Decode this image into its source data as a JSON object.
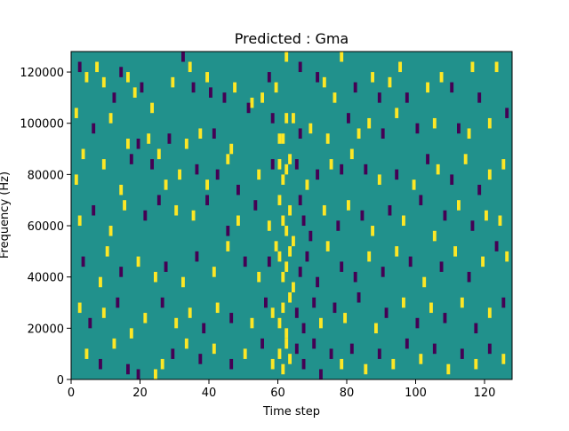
{
  "chart_data": {
    "type": "heatmap",
    "title": "Predicted : Gma",
    "xlabel": "Time step",
    "ylabel": "Frequency (Hz)",
    "xlim": [
      0,
      128
    ],
    "ylim": [
      0,
      128000
    ],
    "x_ticks": [
      0,
      20,
      40,
      60,
      80,
      100,
      120
    ],
    "x_tick_labels": [
      "0",
      "20",
      "40",
      "60",
      "80",
      "100",
      "120"
    ],
    "y_ticks": [
      0,
      20000,
      40000,
      60000,
      80000,
      100000,
      120000
    ],
    "y_tick_labels": [
      "0",
      "20000",
      "40000",
      "60000",
      "80000",
      "100000",
      "120000"
    ],
    "colormap": "viridis",
    "background_value": 0,
    "colors": {
      "background": "#21918c",
      "high": "#fde725",
      "low": "#440154"
    },
    "grid": false,
    "legend": "none",
    "cells_note": "time step, frequency band center (Hz), value (+1 high / -1 low); bands are 4000 Hz wide",
    "cells": [
      [
        2,
        122000,
        -1
      ],
      [
        4,
        118000,
        1
      ],
      [
        7,
        122000,
        1
      ],
      [
        9,
        116000,
        1
      ],
      [
        12,
        110000,
        -1
      ],
      [
        14,
        120000,
        -1
      ],
      [
        16,
        118000,
        1
      ],
      [
        18,
        112000,
        1
      ],
      [
        20,
        114000,
        -1
      ],
      [
        23,
        106000,
        1
      ],
      [
        29,
        116000,
        1
      ],
      [
        32,
        126000,
        -1
      ],
      [
        34,
        122000,
        1
      ],
      [
        35,
        114000,
        -1
      ],
      [
        39,
        118000,
        1
      ],
      [
        40,
        112000,
        -1
      ],
      [
        44,
        110000,
        -1
      ],
      [
        47,
        114000,
        1
      ],
      [
        51,
        106000,
        -1
      ],
      [
        55,
        110000,
        1
      ],
      [
        57,
        118000,
        -1
      ],
      [
        59,
        114000,
        1
      ],
      [
        62,
        126000,
        1
      ],
      [
        66,
        122000,
        -1
      ],
      [
        71,
        118000,
        -1
      ],
      [
        73,
        116000,
        1
      ],
      [
        76,
        110000,
        1
      ],
      [
        78,
        126000,
        1
      ],
      [
        82,
        114000,
        -1
      ],
      [
        87,
        118000,
        1
      ],
      [
        89,
        110000,
        -1
      ],
      [
        92,
        116000,
        1
      ],
      [
        95,
        122000,
        1
      ],
      [
        97,
        110000,
        -1
      ],
      [
        103,
        114000,
        1
      ],
      [
        107,
        118000,
        1
      ],
      [
        110,
        114000,
        -1
      ],
      [
        116,
        122000,
        1
      ],
      [
        118,
        110000,
        -1
      ],
      [
        123,
        122000,
        1
      ],
      [
        1,
        104000,
        1
      ],
      [
        6,
        98000,
        -1
      ],
      [
        11,
        102000,
        1
      ],
      [
        16,
        92000,
        1
      ],
      [
        19,
        92000,
        -1
      ],
      [
        22,
        94000,
        1
      ],
      [
        25,
        88000,
        1
      ],
      [
        28,
        94000,
        -1
      ],
      [
        33,
        92000,
        1
      ],
      [
        37,
        96000,
        1
      ],
      [
        41,
        96000,
        -1
      ],
      [
        46,
        90000,
        1
      ],
      [
        52,
        108000,
        1
      ],
      [
        58,
        102000,
        -1
      ],
      [
        60,
        94000,
        1
      ],
      [
        61,
        94000,
        1
      ],
      [
        62,
        102000,
        1
      ],
      [
        64,
        102000,
        1
      ],
      [
        66,
        96000,
        -1
      ],
      [
        69,
        98000,
        1
      ],
      [
        74,
        94000,
        1
      ],
      [
        80,
        102000,
        -1
      ],
      [
        83,
        96000,
        1
      ],
      [
        86,
        100000,
        1
      ],
      [
        90,
        96000,
        -1
      ],
      [
        94,
        104000,
        1
      ],
      [
        100,
        98000,
        -1
      ],
      [
        105,
        100000,
        1
      ],
      [
        112,
        98000,
        -1
      ],
      [
        115,
        96000,
        1
      ],
      [
        121,
        100000,
        1
      ],
      [
        126,
        104000,
        -1
      ],
      [
        1,
        78000,
        1
      ],
      [
        3,
        88000,
        1
      ],
      [
        9,
        84000,
        1
      ],
      [
        14,
        74000,
        1
      ],
      [
        17,
        86000,
        -1
      ],
      [
        23,
        84000,
        -1
      ],
      [
        27,
        76000,
        1
      ],
      [
        31,
        80000,
        1
      ],
      [
        36,
        82000,
        -1
      ],
      [
        39,
        76000,
        1
      ],
      [
        42,
        80000,
        -1
      ],
      [
        45,
        86000,
        1
      ],
      [
        48,
        74000,
        -1
      ],
      [
        54,
        80000,
        1
      ],
      [
        58,
        84000,
        -1
      ],
      [
        60,
        84000,
        1
      ],
      [
        61,
        78000,
        1
      ],
      [
        62,
        82000,
        1
      ],
      [
        63,
        86000,
        1
      ],
      [
        65,
        84000,
        -1
      ],
      [
        68,
        76000,
        1
      ],
      [
        71,
        80000,
        -1
      ],
      [
        75,
        84000,
        1
      ],
      [
        78,
        82000,
        -1
      ],
      [
        81,
        88000,
        1
      ],
      [
        85,
        82000,
        -1
      ],
      [
        89,
        78000,
        1
      ],
      [
        94,
        80000,
        -1
      ],
      [
        99,
        76000,
        1
      ],
      [
        103,
        86000,
        -1
      ],
      [
        106,
        82000,
        1
      ],
      [
        110,
        78000,
        -1
      ],
      [
        114,
        86000,
        1
      ],
      [
        118,
        74000,
        -1
      ],
      [
        121,
        80000,
        1
      ],
      [
        125,
        84000,
        1
      ],
      [
        2,
        62000,
        1
      ],
      [
        6,
        66000,
        -1
      ],
      [
        11,
        58000,
        1
      ],
      [
        15,
        68000,
        1
      ],
      [
        21,
        64000,
        -1
      ],
      [
        25,
        70000,
        -1
      ],
      [
        30,
        66000,
        1
      ],
      [
        35,
        64000,
        1
      ],
      [
        39,
        70000,
        -1
      ],
      [
        45,
        58000,
        -1
      ],
      [
        48,
        62000,
        1
      ],
      [
        53,
        68000,
        -1
      ],
      [
        57,
        60000,
        1
      ],
      [
        59,
        52000,
        1
      ],
      [
        60,
        70000,
        1
      ],
      [
        61,
        62000,
        1
      ],
      [
        62,
        58000,
        1
      ],
      [
        63,
        66000,
        1
      ],
      [
        64,
        54000,
        1
      ],
      [
        66,
        70000,
        -1
      ],
      [
        67,
        62000,
        -1
      ],
      [
        69,
        56000,
        -1
      ],
      [
        73,
        66000,
        1
      ],
      [
        77,
        60000,
        -1
      ],
      [
        80,
        68000,
        1
      ],
      [
        84,
        64000,
        -1
      ],
      [
        87,
        58000,
        1
      ],
      [
        92,
        66000,
        -1
      ],
      [
        96,
        62000,
        1
      ],
      [
        101,
        70000,
        -1
      ],
      [
        105,
        56000,
        1
      ],
      [
        108,
        64000,
        -1
      ],
      [
        112,
        68000,
        1
      ],
      [
        116,
        60000,
        -1
      ],
      [
        120,
        64000,
        1
      ],
      [
        124,
        62000,
        1
      ],
      [
        3,
        46000,
        -1
      ],
      [
        8,
        38000,
        1
      ],
      [
        10,
        50000,
        1
      ],
      [
        14,
        42000,
        -1
      ],
      [
        19,
        46000,
        1
      ],
      [
        24,
        40000,
        1
      ],
      [
        27,
        44000,
        -1
      ],
      [
        32,
        38000,
        1
      ],
      [
        36,
        48000,
        -1
      ],
      [
        41,
        42000,
        1
      ],
      [
        45,
        52000,
        1
      ],
      [
        50,
        46000,
        -1
      ],
      [
        54,
        40000,
        1
      ],
      [
        57,
        46000,
        -1
      ],
      [
        60,
        48000,
        1
      ],
      [
        61,
        40000,
        1
      ],
      [
        62,
        44000,
        1
      ],
      [
        63,
        50000,
        1
      ],
      [
        64,
        36000,
        1
      ],
      [
        66,
        42000,
        -1
      ],
      [
        68,
        48000,
        -1
      ],
      [
        71,
        38000,
        -1
      ],
      [
        74,
        52000,
        1
      ],
      [
        78,
        44000,
        -1
      ],
      [
        82,
        40000,
        -1
      ],
      [
        86,
        48000,
        1
      ],
      [
        90,
        42000,
        -1
      ],
      [
        94,
        50000,
        1
      ],
      [
        98,
        46000,
        -1
      ],
      [
        102,
        38000,
        1
      ],
      [
        107,
        44000,
        -1
      ],
      [
        111,
        50000,
        1
      ],
      [
        115,
        40000,
        -1
      ],
      [
        119,
        46000,
        1
      ],
      [
        123,
        52000,
        -1
      ],
      [
        126,
        48000,
        1
      ],
      [
        2,
        28000,
        1
      ],
      [
        5,
        22000,
        -1
      ],
      [
        9,
        26000,
        1
      ],
      [
        13,
        30000,
        -1
      ],
      [
        17,
        18000,
        1
      ],
      [
        21,
        24000,
        1
      ],
      [
        26,
        30000,
        -1
      ],
      [
        30,
        22000,
        1
      ],
      [
        34,
        26000,
        1
      ],
      [
        38,
        20000,
        -1
      ],
      [
        42,
        28000,
        1
      ],
      [
        46,
        24000,
        -1
      ],
      [
        52,
        22000,
        1
      ],
      [
        56,
        30000,
        -1
      ],
      [
        58,
        26000,
        1
      ],
      [
        60,
        22000,
        1
      ],
      [
        61,
        28000,
        1
      ],
      [
        62,
        18000,
        1
      ],
      [
        63,
        32000,
        1
      ],
      [
        65,
        26000,
        -1
      ],
      [
        67,
        20000,
        -1
      ],
      [
        70,
        30000,
        -1
      ],
      [
        72,
        22000,
        1
      ],
      [
        76,
        28000,
        -1
      ],
      [
        79,
        24000,
        1
      ],
      [
        83,
        32000,
        -1
      ],
      [
        88,
        20000,
        1
      ],
      [
        91,
        26000,
        -1
      ],
      [
        96,
        30000,
        1
      ],
      [
        100,
        22000,
        -1
      ],
      [
        104,
        28000,
        1
      ],
      [
        108,
        24000,
        -1
      ],
      [
        113,
        30000,
        1
      ],
      [
        117,
        20000,
        -1
      ],
      [
        121,
        26000,
        1
      ],
      [
        125,
        30000,
        -1
      ],
      [
        4,
        10000,
        1
      ],
      [
        8,
        6000,
        -1
      ],
      [
        12,
        14000,
        1
      ],
      [
        16,
        4000,
        -1
      ],
      [
        19,
        2000,
        -1
      ],
      [
        24,
        2000,
        1
      ],
      [
        26,
        6000,
        1
      ],
      [
        29,
        10000,
        -1
      ],
      [
        33,
        14000,
        1
      ],
      [
        37,
        8000,
        -1
      ],
      [
        41,
        12000,
        1
      ],
      [
        46,
        6000,
        -1
      ],
      [
        50,
        10000,
        1
      ],
      [
        55,
        14000,
        -1
      ],
      [
        58,
        6000,
        1
      ],
      [
        60,
        10000,
        1
      ],
      [
        61,
        4000,
        1
      ],
      [
        62,
        14000,
        1
      ],
      [
        63,
        8000,
        1
      ],
      [
        65,
        12000,
        -1
      ],
      [
        67,
        6000,
        -1
      ],
      [
        70,
        14000,
        -1
      ],
      [
        72,
        2000,
        -1
      ],
      [
        75,
        10000,
        -1
      ],
      [
        78,
        6000,
        1
      ],
      [
        81,
        12000,
        -1
      ],
      [
        85,
        4000,
        1
      ],
      [
        89,
        10000,
        -1
      ],
      [
        93,
        6000,
        1
      ],
      [
        97,
        14000,
        -1
      ],
      [
        101,
        8000,
        1
      ],
      [
        105,
        12000,
        -1
      ],
      [
        109,
        4000,
        1
      ],
      [
        113,
        10000,
        -1
      ],
      [
        117,
        6000,
        1
      ],
      [
        121,
        12000,
        -1
      ],
      [
        125,
        8000,
        1
      ]
    ]
  }
}
